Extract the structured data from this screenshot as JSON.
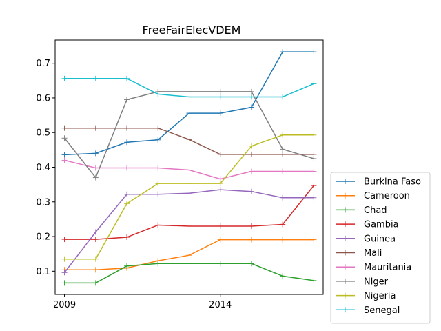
{
  "chart_data": {
    "type": "line",
    "title": "FreeFairElecVDEM",
    "xlabel": "",
    "ylabel": "",
    "x": [
      2009,
      2010,
      2011,
      2012,
      2013,
      2014,
      2015,
      2016,
      2017
    ],
    "xlim": [
      2008.7,
      2017.3
    ],
    "ylim": [
      0.033,
      0.767
    ],
    "xticks": [
      2009,
      2014
    ],
    "yticks": [
      0.1,
      0.2,
      0.3,
      0.4,
      0.5,
      0.6,
      0.7
    ],
    "grid": false,
    "legend_position": "outside-right-bottom",
    "series": [
      {
        "name": "Burkina Faso",
        "color": "#1f77b4",
        "values": [
          0.436,
          0.44,
          0.472,
          0.479,
          0.556,
          0.556,
          0.573,
          0.733,
          0.733
        ]
      },
      {
        "name": "Cameroon",
        "color": "#ff7f0e",
        "values": [
          0.104,
          0.104,
          0.109,
          0.13,
          0.146,
          0.191,
          0.191,
          0.191,
          0.191
        ]
      },
      {
        "name": "Chad",
        "color": "#2ca02c",
        "values": [
          0.066,
          0.066,
          0.115,
          0.122,
          0.122,
          0.122,
          0.122,
          0.086,
          0.073
        ]
      },
      {
        "name": "Gambia",
        "color": "#d62728",
        "values": [
          0.192,
          0.192,
          0.198,
          0.233,
          0.23,
          0.23,
          0.23,
          0.235,
          0.347
        ]
      },
      {
        "name": "Guinea",
        "color": "#9467bd",
        "values": [
          0.096,
          0.213,
          0.322,
          0.322,
          0.325,
          0.335,
          0.33,
          0.312,
          0.312
        ]
      },
      {
        "name": "Mali",
        "color": "#8c564b",
        "values": [
          0.513,
          0.513,
          0.513,
          0.513,
          0.48,
          0.437,
          0.437,
          0.437,
          0.437
        ]
      },
      {
        "name": "Mauritania",
        "color": "#e377c2",
        "values": [
          0.42,
          0.398,
          0.398,
          0.398,
          0.392,
          0.366,
          0.388,
          0.388,
          0.388
        ]
      },
      {
        "name": "Niger",
        "color": "#7f7f7f",
        "values": [
          0.484,
          0.37,
          0.595,
          0.618,
          0.618,
          0.618,
          0.618,
          0.452,
          0.425
        ]
      },
      {
        "name": "Nigeria",
        "color": "#bcbd22",
        "values": [
          0.135,
          0.135,
          0.295,
          0.353,
          0.353,
          0.353,
          0.461,
          0.493,
          0.493
        ]
      },
      {
        "name": "Senegal",
        "color": "#17becf",
        "values": [
          0.656,
          0.656,
          0.656,
          0.611,
          0.603,
          0.603,
          0.603,
          0.603,
          0.641
        ]
      }
    ]
  }
}
